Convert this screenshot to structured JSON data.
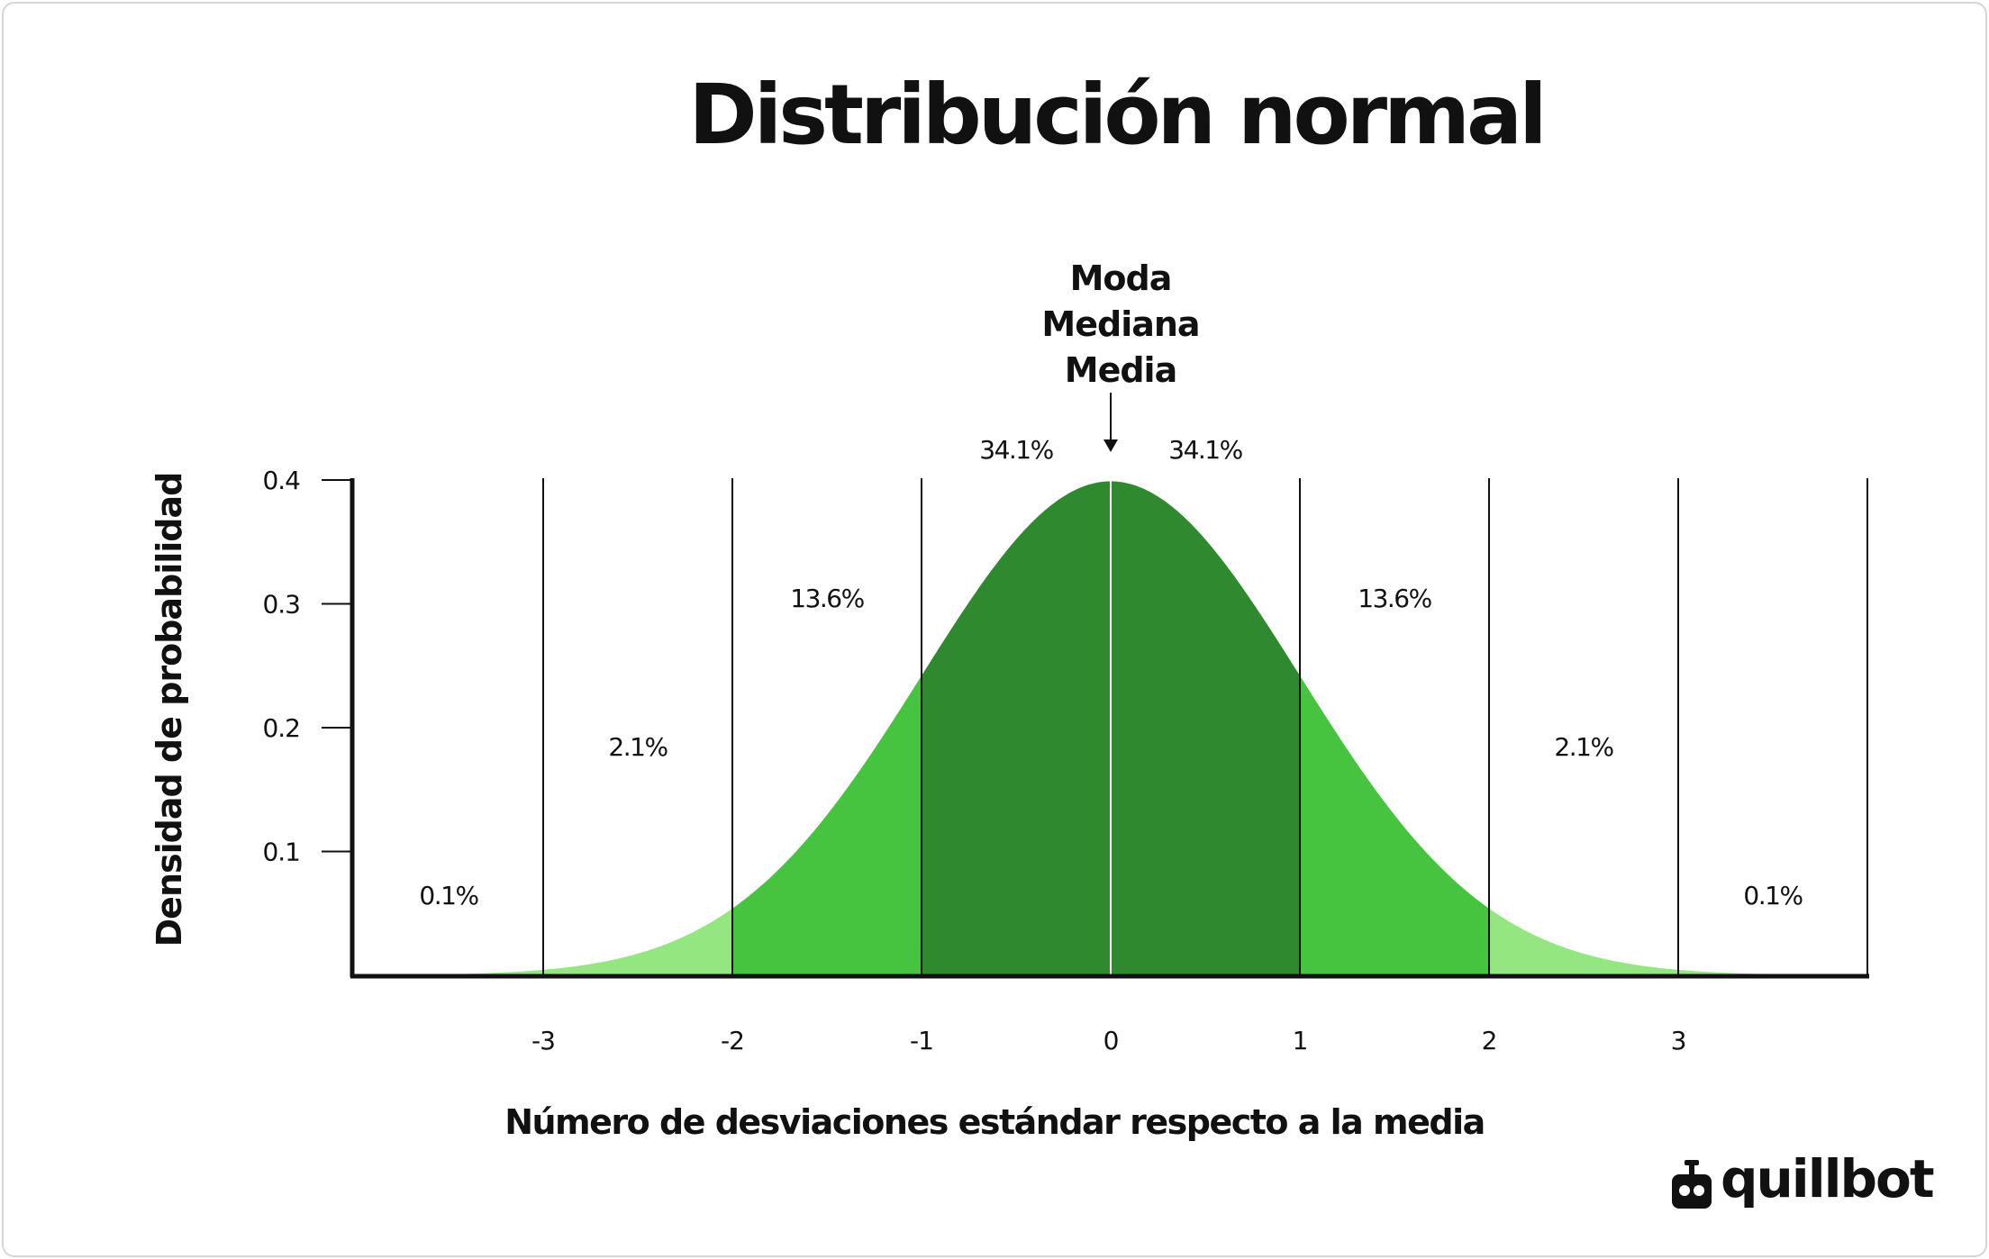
{
  "chart_data": {
    "type": "area",
    "title": "Distribución normal",
    "xlabel": "Número de desviaciones estándar respecto a la media",
    "ylabel": "Densidad de probabilidad",
    "xlim": [
      -4,
      4
    ],
    "ylim": [
      0,
      0.4
    ],
    "x_ticks": [
      "-3",
      "-2",
      "-1",
      "0",
      "1",
      "2",
      "3"
    ],
    "y_ticks": [
      "0.1",
      "0.2",
      "0.3",
      "0.4"
    ],
    "curve": {
      "function": "standard normal density",
      "mean": 0,
      "sd": 1
    },
    "regions": [
      {
        "from": -4,
        "to": -3,
        "label": "0.1%",
        "color": "#93e680"
      },
      {
        "from": -3,
        "to": -2,
        "label": "2.1%",
        "color": "#93e680"
      },
      {
        "from": -2,
        "to": -1,
        "label": "13.6%",
        "color": "#47c43f"
      },
      {
        "from": -1,
        "to": 0,
        "label": "34.1%",
        "color": "#2f8a2f"
      },
      {
        "from": 0,
        "to": 1,
        "label": "34.1%",
        "color": "#2f8a2f"
      },
      {
        "from": 1,
        "to": 2,
        "label": "13.6%",
        "color": "#47c43f"
      },
      {
        "from": 2,
        "to": 3,
        "label": "2.1%",
        "color": "#93e680"
      },
      {
        "from": 3,
        "to": 4,
        "label": "0.1%",
        "color": "#93e680"
      }
    ],
    "annotation": {
      "lines": [
        "Moda",
        "Mediana",
        "Media"
      ],
      "x": 0
    },
    "grid": "vertical lines at each standard deviation"
  },
  "brand": {
    "name": "quillbot"
  }
}
